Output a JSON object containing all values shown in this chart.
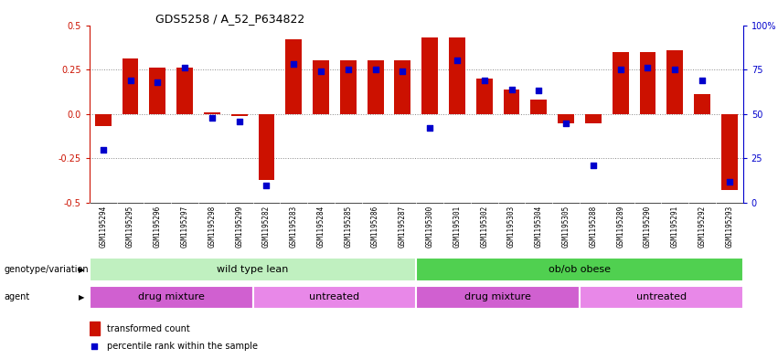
{
  "title": "GDS5258 / A_52_P634822",
  "samples": [
    "GSM1195294",
    "GSM1195295",
    "GSM1195296",
    "GSM1195297",
    "GSM1195298",
    "GSM1195299",
    "GSM1195282",
    "GSM1195283",
    "GSM1195284",
    "GSM1195285",
    "GSM1195286",
    "GSM1195287",
    "GSM1195300",
    "GSM1195301",
    "GSM1195302",
    "GSM1195303",
    "GSM1195304",
    "GSM1195305",
    "GSM1195288",
    "GSM1195289",
    "GSM1195290",
    "GSM1195291",
    "GSM1195292",
    "GSM1195293"
  ],
  "red_values": [
    -0.07,
    0.31,
    0.26,
    0.26,
    0.01,
    -0.01,
    -0.37,
    0.42,
    0.3,
    0.3,
    0.3,
    0.3,
    0.43,
    0.43,
    0.2,
    0.14,
    0.08,
    -0.05,
    -0.05,
    0.35,
    0.35,
    0.36,
    0.11,
    -0.43
  ],
  "blue_values": [
    -0.2,
    0.19,
    0.18,
    0.26,
    -0.02,
    -0.04,
    -0.4,
    0.28,
    0.24,
    0.25,
    0.25,
    0.24,
    -0.08,
    0.3,
    0.19,
    0.14,
    0.13,
    -0.05,
    -0.29,
    0.25,
    0.26,
    0.25,
    0.19,
    -0.38
  ],
  "genotype_groups": [
    {
      "label": "wild type lean",
      "start": 0,
      "end": 12,
      "color": "#c0f0c0"
    },
    {
      "label": "ob/ob obese",
      "start": 12,
      "end": 24,
      "color": "#50d050"
    }
  ],
  "agent_groups": [
    {
      "label": "drug mixture",
      "start": 0,
      "end": 6,
      "color": "#d060d0"
    },
    {
      "label": "untreated",
      "start": 6,
      "end": 12,
      "color": "#e888e8"
    },
    {
      "label": "drug mixture",
      "start": 12,
      "end": 18,
      "color": "#d060d0"
    },
    {
      "label": "untreated",
      "start": 18,
      "end": 24,
      "color": "#e888e8"
    }
  ],
  "ylim": [
    -0.5,
    0.5
  ],
  "yticks_left": [
    -0.5,
    -0.25,
    0.0,
    0.25,
    0.5
  ],
  "yticks_right_labels": [
    "0",
    "25",
    "50",
    "75",
    "100%"
  ],
  "yticks_right_vals": [
    0,
    25,
    50,
    75,
    100
  ],
  "red_color": "#cc1100",
  "blue_color": "#0000cc",
  "bar_width": 0.6,
  "blue_square_size": 20,
  "dotted_line_color": "#888888",
  "xtick_bg_color": "#d0d0d0"
}
